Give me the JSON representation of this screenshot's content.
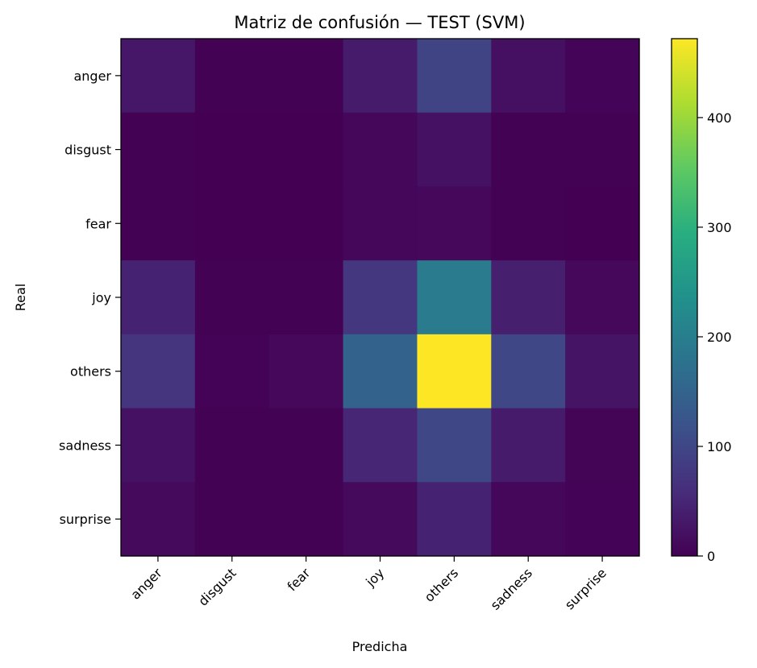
{
  "chart_data": {
    "type": "heatmap",
    "title": "Matriz de confusión — TEST (SVM)",
    "xlabel": "Predicha",
    "ylabel": "Real",
    "x_categories": [
      "anger",
      "disgust",
      "fear",
      "joy",
      "others",
      "sadness",
      "surprise"
    ],
    "y_categories": [
      "anger",
      "disgust",
      "fear",
      "joy",
      "others",
      "sadness",
      "surprise"
    ],
    "values": [
      [
        30,
        1,
        1,
        35,
        95,
        20,
        4
      ],
      [
        2,
        0,
        0,
        8,
        22,
        2,
        1
      ],
      [
        2,
        0,
        0,
        8,
        10,
        1,
        0
      ],
      [
        45,
        2,
        1,
        75,
        195,
        40,
        10
      ],
      [
        70,
        3,
        10,
        150,
        472,
        100,
        25
      ],
      [
        22,
        1,
        1,
        50,
        100,
        35,
        5
      ],
      [
        12,
        1,
        1,
        12,
        45,
        8,
        3
      ]
    ],
    "colormap": "viridis",
    "colorbar": {
      "min": 0,
      "max": 472,
      "ticks": [
        0,
        100,
        200,
        300,
        400
      ]
    }
  }
}
